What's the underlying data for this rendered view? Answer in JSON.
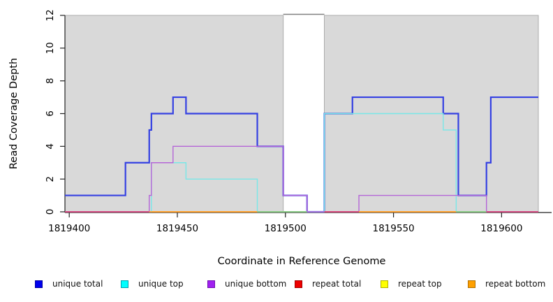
{
  "figure": {
    "xlabel": "Coordinate in Reference Genome",
    "ylabel": "Read Coverage Depth",
    "background": "#ffffff"
  },
  "legend": {
    "items": [
      {
        "label": "unique total",
        "color": "#0000ee",
        "border": "#0000a0"
      },
      {
        "label": "unique top",
        "color": "#00ffff",
        "border": "#00a0b0"
      },
      {
        "label": "unique bottom",
        "color": "#a020f0",
        "border": "#7010b0"
      },
      {
        "label": "repeat total",
        "color": "#ee0000",
        "border": "#a00000"
      },
      {
        "label": "repeat top",
        "color": "#ffff00",
        "border": "#b0b000"
      },
      {
        "label": "repeat bottom",
        "color": "#ffa000",
        "border": "#b07000"
      }
    ]
  },
  "chart_data": {
    "type": "line",
    "step": true,
    "title": "",
    "xlabel": "Coordinate in Reference Genome",
    "ylabel": "Read Coverage Depth",
    "xlim": [
      1819398,
      1819617
    ],
    "ylim": [
      0,
      12
    ],
    "x_ticks": [
      1819400,
      1819450,
      1819500,
      1819550,
      1819600
    ],
    "y_ticks": [
      0,
      2,
      4,
      6,
      8,
      10,
      12
    ],
    "grid": false,
    "legend_position": "bottom",
    "shaded_color": "#d9d9d9",
    "shaded_border": "#ababab",
    "shaded_regions": [
      [
        1819398,
        1819499
      ],
      [
        1819518,
        1819617
      ]
    ],
    "gap_region": [
      1819499,
      1819518
    ],
    "series": [
      {
        "name": "repeat total",
        "color": "#e03c3c",
        "width": 1.4,
        "points": [
          [
            1819398,
            0
          ],
          [
            1819617,
            0
          ]
        ]
      },
      {
        "name": "repeat top",
        "color": "#f2e918",
        "width": 1.4,
        "points": [
          [
            1819398,
            0
          ],
          [
            1819617,
            0
          ]
        ]
      },
      {
        "name": "repeat bottom",
        "color": "#ff9e2a",
        "width": 1.4,
        "points": [
          [
            1819398,
            0
          ],
          [
            1819617,
            0
          ]
        ]
      },
      {
        "name": "unique total",
        "color": "#3440e2",
        "width": 2.2,
        "points": [
          [
            1819398,
            1
          ],
          [
            1819426,
            3
          ],
          [
            1819437,
            5
          ],
          [
            1819438,
            6
          ],
          [
            1819448,
            7
          ],
          [
            1819454,
            6
          ],
          [
            1819487,
            4
          ],
          [
            1819499,
            1
          ],
          [
            1819510,
            0
          ],
          [
            1819518,
            6
          ],
          [
            1819531,
            7
          ],
          [
            1819573,
            6
          ],
          [
            1819580,
            1
          ],
          [
            1819593,
            3
          ],
          [
            1819595,
            7
          ],
          [
            1819617,
            7
          ]
        ]
      },
      {
        "name": "unique top",
        "color": "#79e8e8",
        "width": 1.4,
        "points": [
          [
            1819398,
            0
          ],
          [
            1819438,
            3
          ],
          [
            1819454,
            2
          ],
          [
            1819487,
            0
          ],
          [
            1819518,
            6
          ],
          [
            1819573,
            5
          ],
          [
            1819579,
            0
          ],
          [
            1819617,
            0
          ]
        ]
      },
      {
        "name": "unique bottom",
        "color": "#b566d8",
        "width": 1.4,
        "points": [
          [
            1819398,
            0
          ],
          [
            1819437,
            1
          ],
          [
            1819438,
            3
          ],
          [
            1819448,
            4
          ],
          [
            1819499,
            1
          ],
          [
            1819510,
            0
          ],
          [
            1819534,
            1
          ],
          [
            1819593,
            0
          ],
          [
            1819617,
            0
          ]
        ]
      }
    ],
    "baseline_segments": [
      {
        "from": 1819398,
        "to": 1819437,
        "color": "#d6407a"
      },
      {
        "from": 1819437,
        "to": 1819487,
        "color": "#ff9e2a"
      },
      {
        "from": 1819487,
        "to": 1819510,
        "color": "#82c882"
      },
      {
        "from": 1819518,
        "to": 1819534,
        "color": "#d6407a"
      },
      {
        "from": 1819534,
        "to": 1819579,
        "color": "#ff9e2a"
      },
      {
        "from": 1819579,
        "to": 1819593,
        "color": "#82c882"
      },
      {
        "from": 1819593,
        "to": 1819617,
        "color": "#d6407a"
      }
    ]
  }
}
